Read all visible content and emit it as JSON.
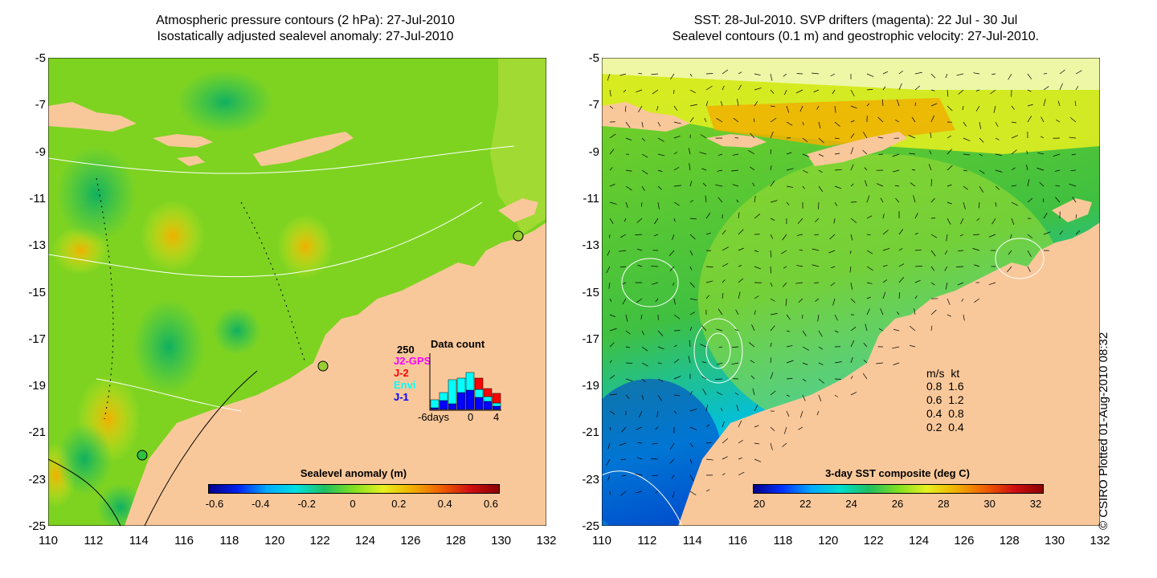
{
  "left_panel": {
    "title_line1": "Atmospheric pressure contours (2 hPa): 27-Jul-2010",
    "title_line2": "Isostatically adjusted sealevel anomaly: 27-Jul-2010",
    "colorbar": {
      "title": "Sealevel anomaly (m)",
      "labels": [
        "-0.6",
        "-0.4",
        "-0.2",
        "0",
        "0.2",
        "0.4",
        "0.6"
      ],
      "colors": [
        "#00008b",
        "#0022ee",
        "#00aaff",
        "#00e0e0",
        "#20c060",
        "#80e020",
        "#e8f020",
        "#f0b000",
        "#f06000",
        "#d01010",
        "#8b0000"
      ]
    },
    "data_count_inset": {
      "title": "Data count",
      "max_label": "250",
      "legend": [
        {
          "name": "J2-GPS",
          "color": "#ff00ff"
        },
        {
          "name": "J-2",
          "color": "#ff0000"
        },
        {
          "name": "Envi",
          "color": "#00ffff"
        },
        {
          "name": "J-1",
          "color": "#0000ff"
        }
      ],
      "x_labels": [
        "-6days",
        "0",
        "4"
      ]
    }
  },
  "right_panel": {
    "title_line1": "SST: 28-Jul-2010. SVP drifters (magenta): 22 Jul - 30 Jul",
    "title_line2": "Sealevel contours (0.1 m) and geostrophic velocity: 27-Jul-2010.",
    "colorbar": {
      "title": "3-day SST composite (deg C)",
      "labels": [
        "20",
        "22",
        "24",
        "26",
        "28",
        "30",
        "32"
      ],
      "colors": [
        "#00008b",
        "#0033ff",
        "#00aaff",
        "#00ddcc",
        "#20c060",
        "#80e020",
        "#e8f020",
        "#f0b000",
        "#f06000",
        "#d01010",
        "#8b0000"
      ]
    },
    "velocity_legend": {
      "header": "m/s  kt",
      "rows": [
        "0.8  1.6",
        "0.6  1.2",
        "0.4  0.8",
        "0.2  0.4"
      ]
    }
  },
  "axes": {
    "y_labels": [
      "-5",
      "-7",
      "-9",
      "-11",
      "-13",
      "-15",
      "-17",
      "-19",
      "-21",
      "-23",
      "-25"
    ],
    "x_labels": [
      "110",
      "112",
      "114",
      "116",
      "118",
      "120",
      "122",
      "124",
      "126",
      "128",
      "130",
      "132"
    ]
  },
  "credit": "© CSIRO Plotted 01-Aug-2010 08:32",
  "colors": {
    "land": "#f9c89a",
    "ocean_base": "#7ed321",
    "sst_warm": "#f0b000"
  }
}
